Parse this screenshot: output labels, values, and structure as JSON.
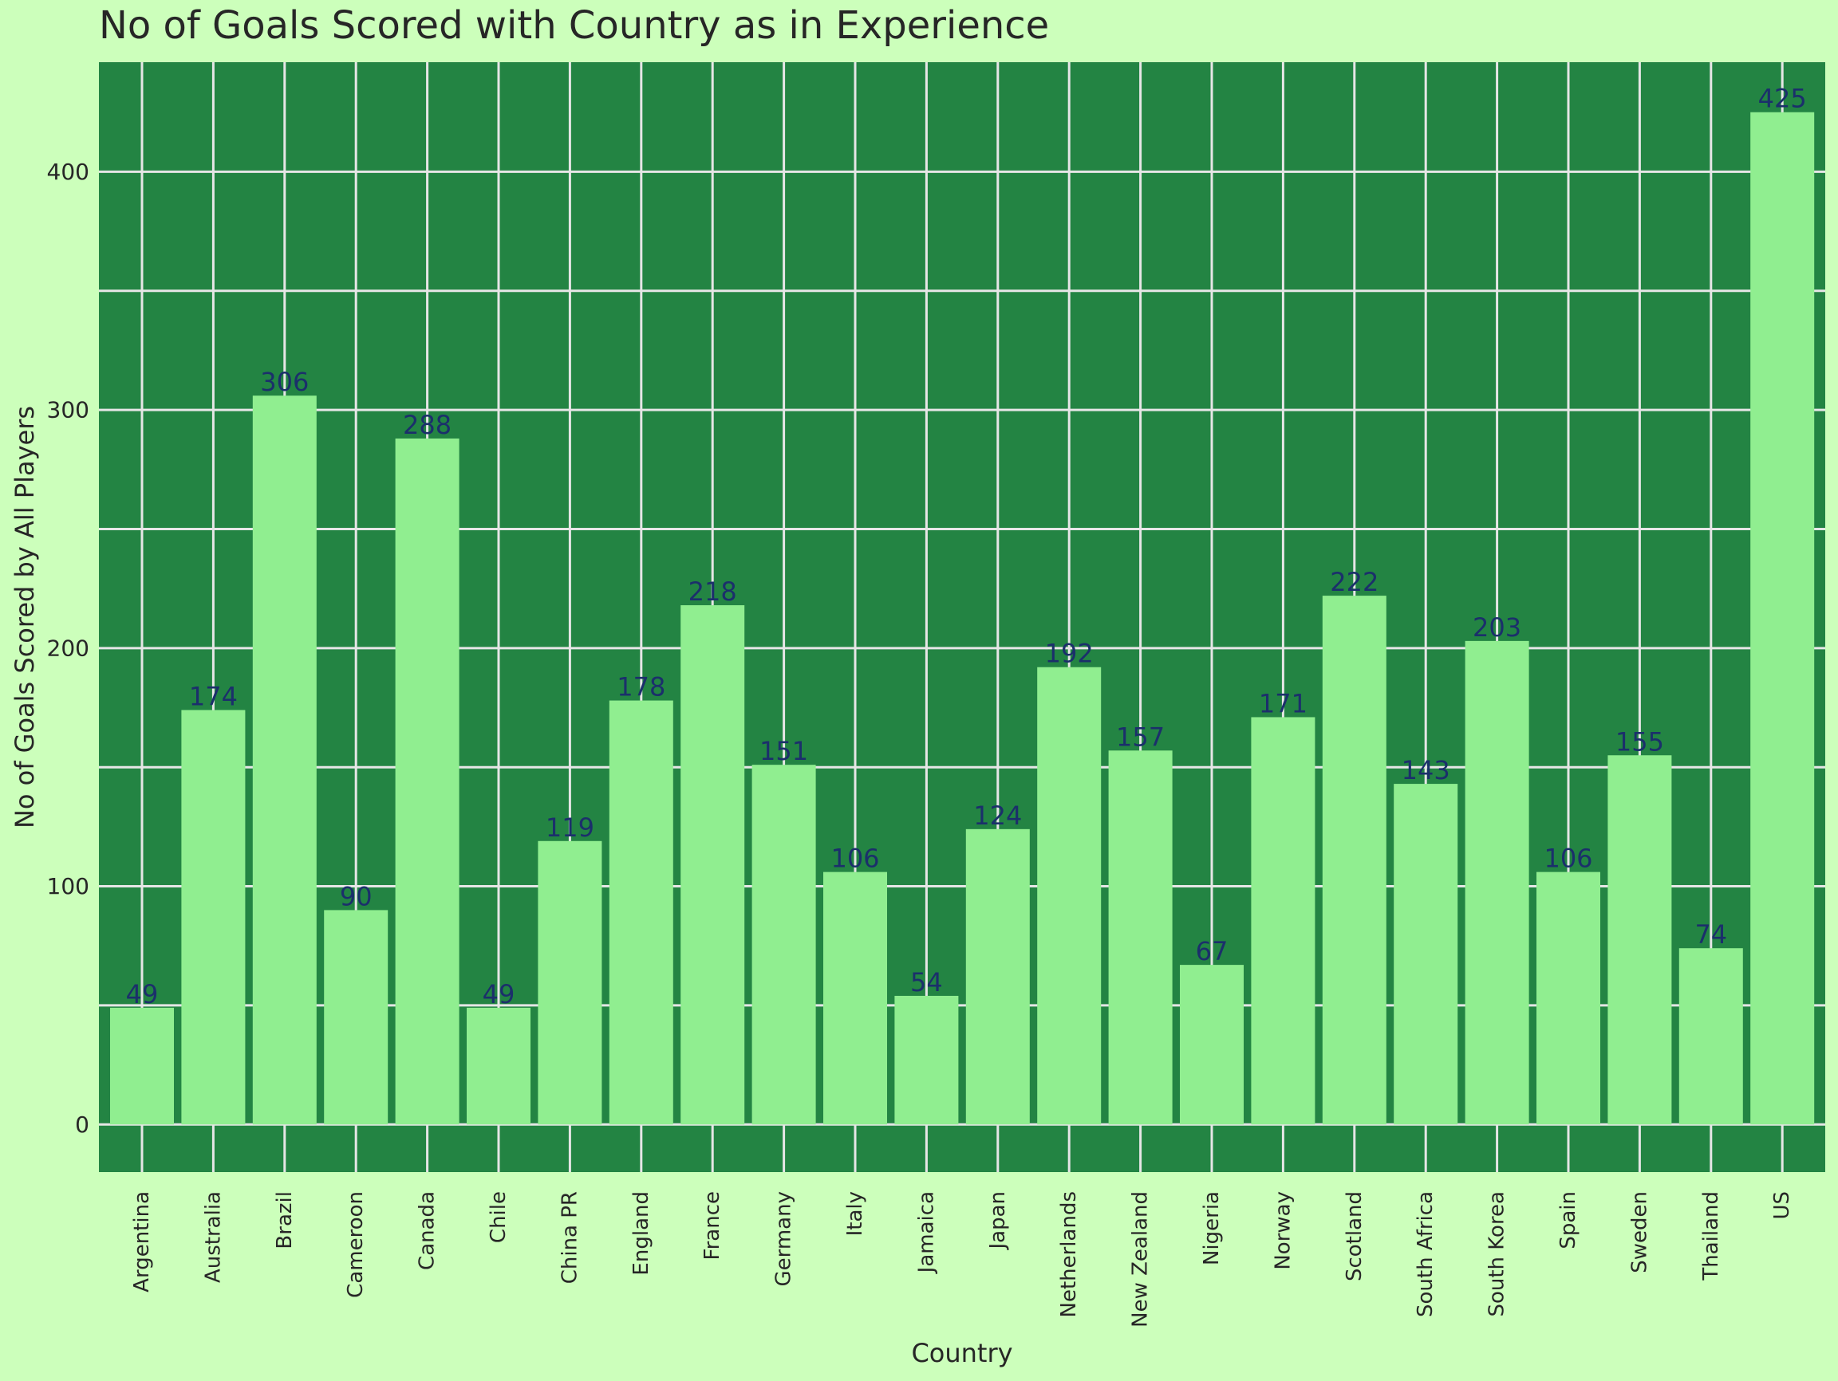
{
  "chart_data": {
    "type": "bar",
    "title": "No of Goals Scored with Country as in Experience",
    "xlabel": "Country",
    "ylabel": "No of Goals Scored by All Players",
    "categories": [
      "Argentina",
      "Australia",
      "Brazil",
      "Cameroon",
      "Canada",
      "Chile",
      "China PR",
      "England",
      "France",
      "Germany",
      "Italy",
      "Jamaica",
      "Japan",
      "Netherlands",
      "New Zealand",
      "Nigeria",
      "Norway",
      "Scotland",
      "South Africa",
      "South Korea",
      "Spain",
      "Sweden",
      "Thailand",
      "US"
    ],
    "values": [
      49,
      174,
      306,
      90,
      288,
      49,
      119,
      178,
      218,
      151,
      106,
      54,
      124,
      192,
      157,
      67,
      171,
      222,
      143,
      203,
      106,
      155,
      74,
      425
    ],
    "yticks": [
      0,
      100,
      200,
      300,
      400
    ],
    "ylim": [
      -20,
      446
    ],
    "grid": true,
    "colors": {
      "page_background": "#ccffbb",
      "plot_background": "#238443",
      "bar": "#90ee90",
      "grid": "#e6e6e6",
      "bar_label": "#1b2f6b",
      "text": "#262626"
    }
  }
}
